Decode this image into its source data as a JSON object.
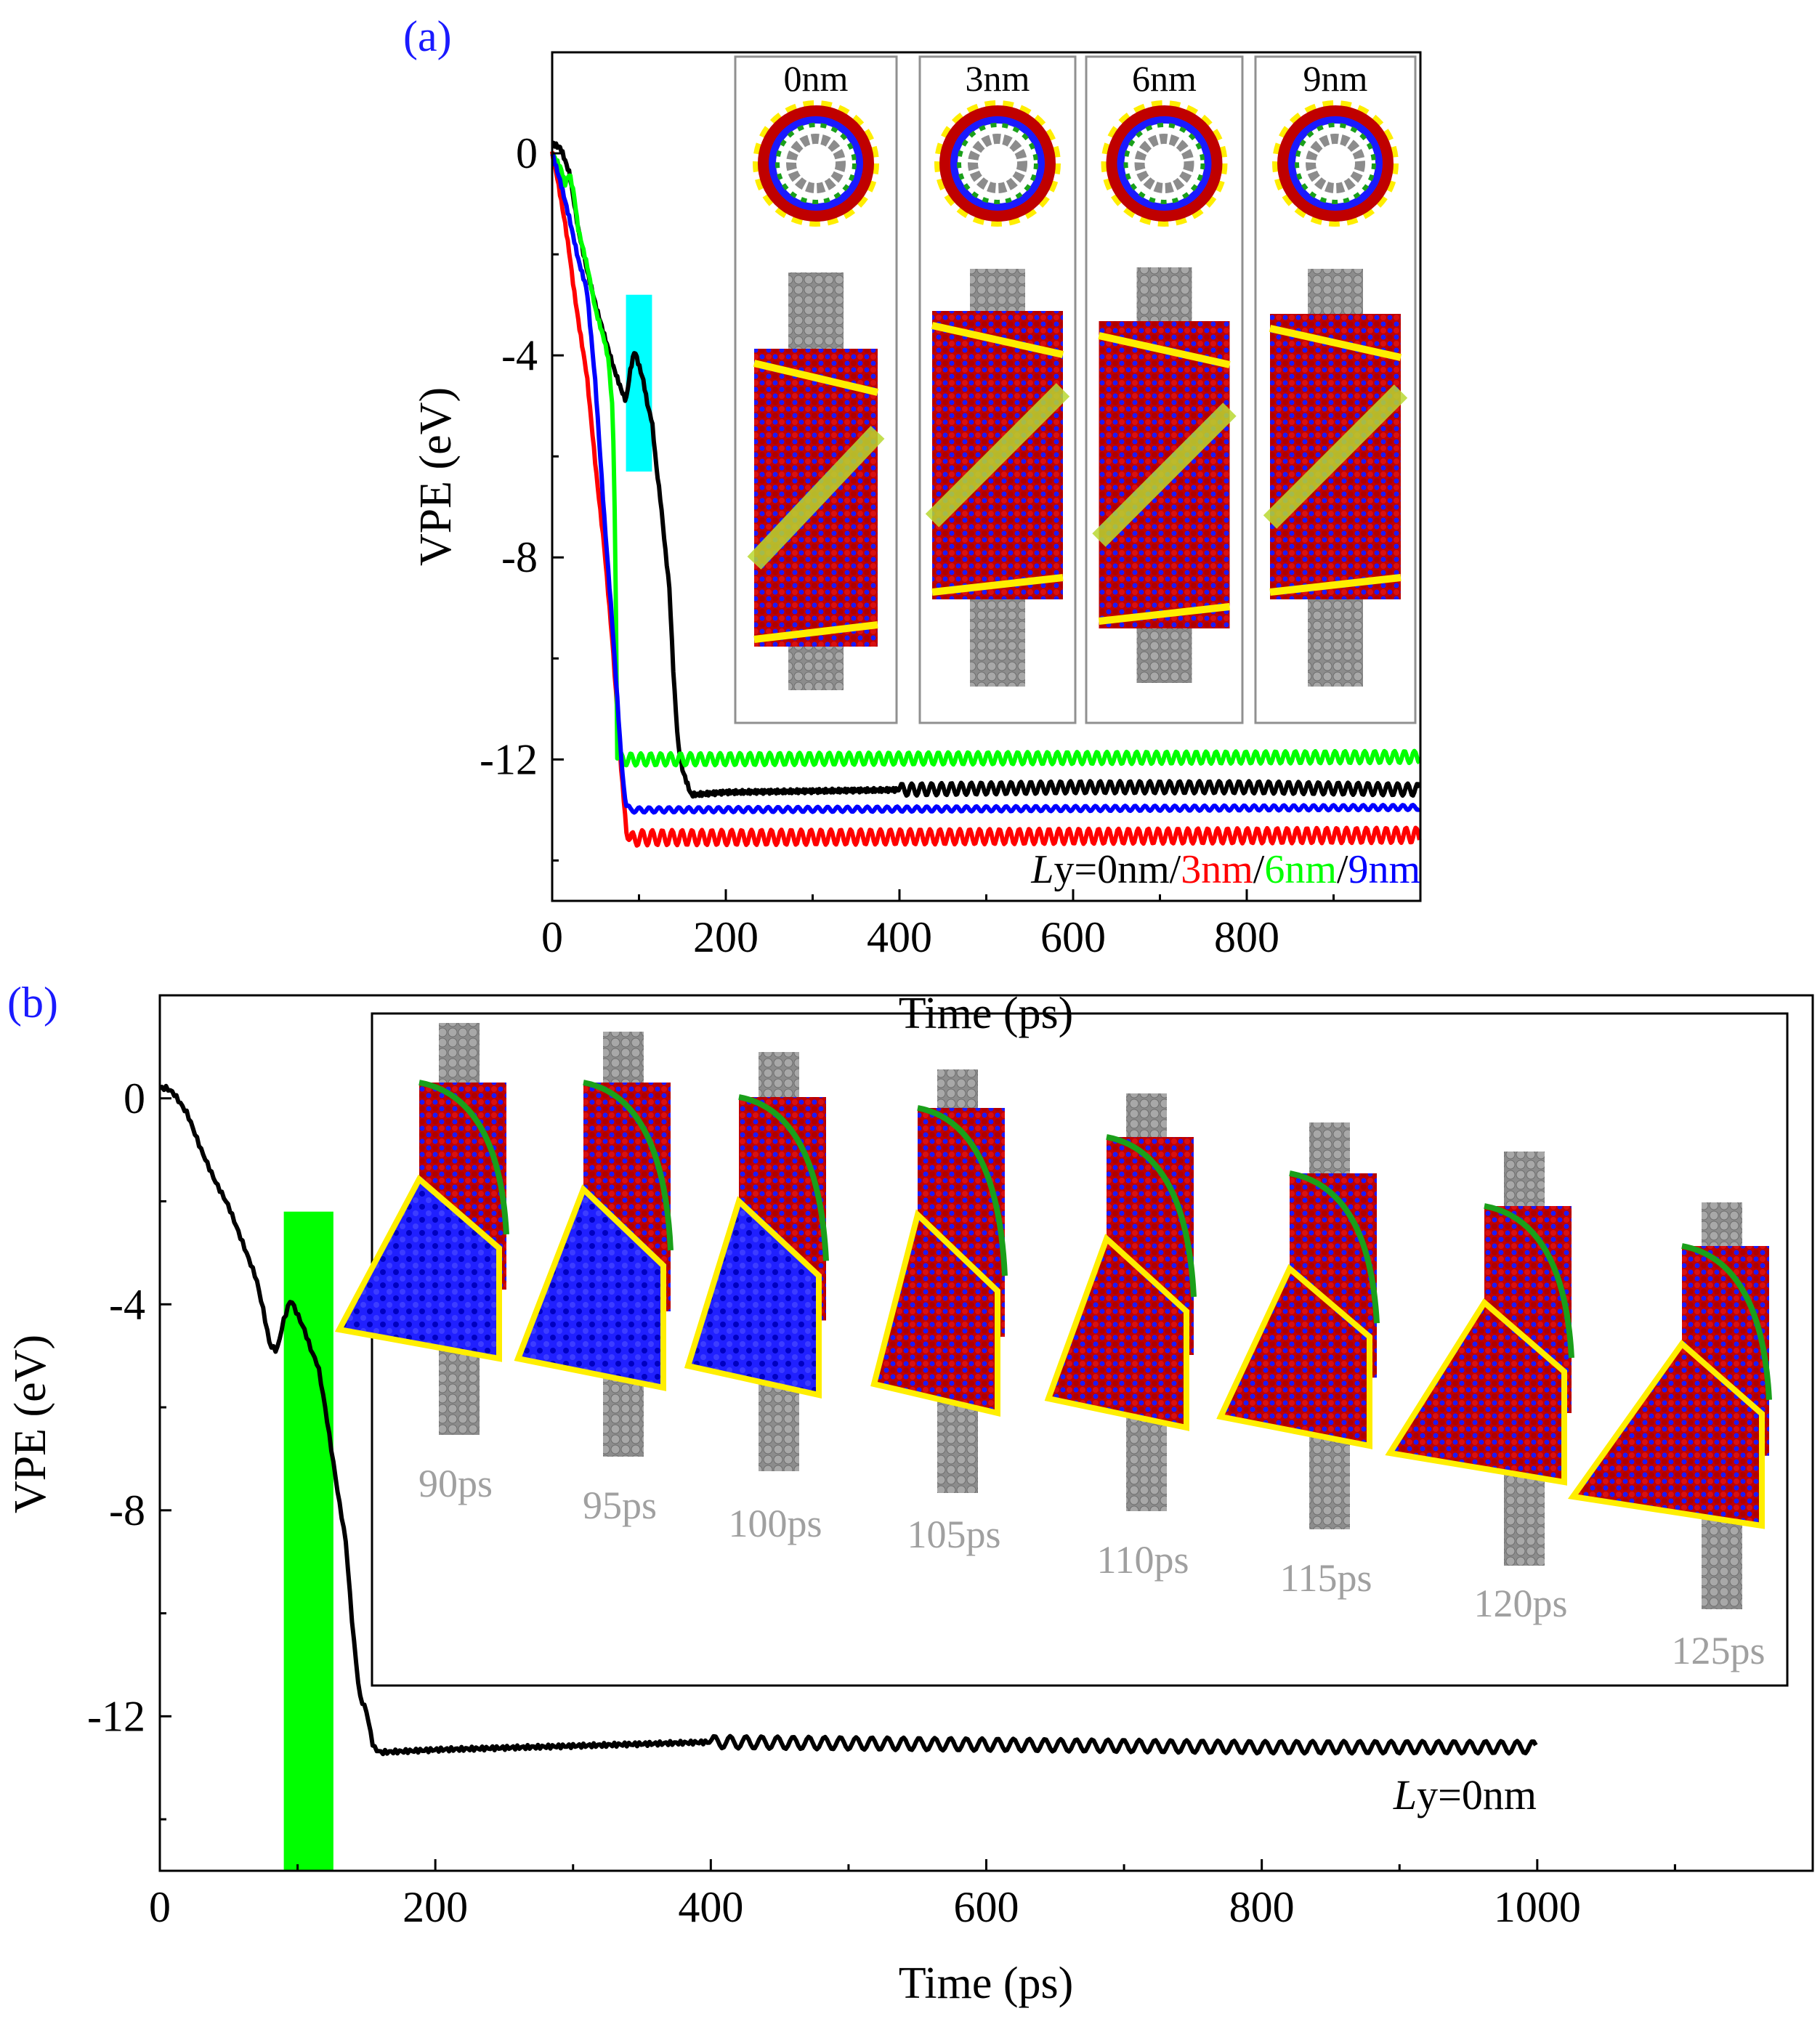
{
  "chart_data": [
    {
      "id": "a",
      "type": "line",
      "panel_label": "(a)",
      "title": "",
      "xlabel": "Time (ps)",
      "ylabel": "VPE (eV)",
      "xlim": [
        0,
        1000
      ],
      "ylim": [
        -14.8,
        2.0
      ],
      "x_ticks": [
        0,
        200,
        400,
        600,
        800
      ],
      "y_ticks": [
        0,
        -4,
        -8,
        -12
      ],
      "x_ticks_labels": [
        "0",
        "200",
        "400",
        "600",
        "800"
      ],
      "y_ticks_labels": [
        "0",
        "-4",
        "-8",
        "-12"
      ],
      "legend": {
        "prefix": "L",
        "prefix_rest": "y=",
        "items": [
          {
            "label": "0nm",
            "color": "#000000"
          },
          {
            "label": "3nm",
            "color": "#ff0000"
          },
          {
            "label": "6nm",
            "color": "#00ff00"
          },
          {
            "label": "9nm",
            "color": "#0000ff"
          }
        ],
        "separator": "/",
        "position": "bottom-right"
      },
      "highlight": {
        "x_start": 85,
        "x_end": 115,
        "y_top": -2.8,
        "y_bottom": -6.3,
        "color": "#00ffff"
      },
      "series": [
        {
          "name": "Ly=0nm",
          "color": "#000000",
          "x": [
            0,
            10,
            20,
            30,
            40,
            50,
            60,
            70,
            80,
            85,
            90,
            95,
            100,
            105,
            110,
            115,
            120,
            125,
            130,
            135,
            140,
            145,
            150,
            160,
            200,
            400,
            600,
            800,
            1000
          ],
          "y": [
            0.2,
            0.1,
            -0.4,
            -1.5,
            -2.3,
            -3.0,
            -3.6,
            -4.2,
            -4.7,
            -4.9,
            -4.3,
            -3.9,
            -4.2,
            -4.5,
            -5.0,
            -5.3,
            -6.2,
            -6.9,
            -7.8,
            -8.6,
            -10.4,
            -11.7,
            -12.2,
            -12.7,
            -12.65,
            -12.6,
            -12.55,
            -12.55,
            -12.6
          ],
          "osc_amp": 0.12
        },
        {
          "name": "Ly=3nm",
          "color": "#ff0000",
          "x": [
            0,
            5,
            10,
            15,
            20,
            25,
            30,
            40,
            50,
            60,
            70,
            80,
            85,
            90,
            100,
            1000
          ],
          "y": [
            0,
            -0.4,
            -0.9,
            -1.4,
            -2.0,
            -2.7,
            -3.3,
            -4.4,
            -6.2,
            -7.8,
            -9.8,
            -12.3,
            -13.3,
            -13.6,
            -13.55,
            -13.5
          ],
          "osc_amp": 0.15
        },
        {
          "name": "Ly=6nm",
          "color": "#00ff00",
          "x": [
            0,
            10,
            15,
            20,
            25,
            30,
            40,
            50,
            60,
            65,
            70,
            73,
            75,
            80,
            1000
          ],
          "y": [
            0,
            -0.3,
            -0.6,
            -0.4,
            -0.8,
            -1.5,
            -2.2,
            -3.1,
            -3.7,
            -4.1,
            -5.2,
            -8.0,
            -11.9,
            -12.0,
            -11.95
          ],
          "osc_amp": 0.12
        },
        {
          "name": "Ly=9nm",
          "color": "#0000ff",
          "x": [
            0,
            5,
            10,
            20,
            30,
            40,
            50,
            60,
            70,
            80,
            85,
            90,
            1000
          ],
          "y": [
            0,
            -0.3,
            -0.6,
            -1.3,
            -2.1,
            -2.7,
            -4.6,
            -7.2,
            -9.5,
            -12.1,
            -12.9,
            -13.0,
            -12.95
          ],
          "osc_amp": 0.05
        }
      ],
      "inset_labels": [
        "0nm",
        "3nm",
        "6nm",
        "9nm"
      ]
    },
    {
      "id": "b",
      "type": "line",
      "panel_label": "(b)",
      "title": "",
      "xlabel": "Time (ps)",
      "ylabel": "VPE (eV)",
      "xlim": [
        0,
        1200
      ],
      "ylim": [
        -15.0,
        2.0
      ],
      "x_ticks": [
        0,
        200,
        400,
        600,
        800,
        1000
      ],
      "y_ticks": [
        0,
        -4,
        -8,
        -12
      ],
      "x_ticks_labels": [
        "0",
        "200",
        "400",
        "600",
        "800",
        "1000"
      ],
      "y_ticks_labels": [
        "0",
        "-4",
        "-8",
        "-12"
      ],
      "legend": {
        "prefix": "L",
        "prefix_rest": "y=",
        "items": [
          {
            "label": "0nm",
            "color": "#000000"
          }
        ],
        "position": "bottom-right"
      },
      "highlight": {
        "x_start": 90,
        "x_end": 126,
        "y_top": -2.2,
        "y_bottom": -15.0,
        "color": "#00ff00"
      },
      "series": [
        {
          "name": "Ly=0nm",
          "color": "#000000",
          "x": [
            0,
            5,
            10,
            20,
            30,
            40,
            50,
            60,
            70,
            75,
            80,
            85,
            90,
            95,
            100,
            105,
            110,
            115,
            120,
            125,
            130,
            135,
            140,
            145,
            150,
            155,
            160,
            200,
            400,
            600,
            800,
            1000
          ],
          "y": [
            0.2,
            0.2,
            0.1,
            -0.3,
            -1.0,
            -1.6,
            -2.1,
            -2.8,
            -3.5,
            -4.1,
            -4.8,
            -4.9,
            -4.3,
            -3.9,
            -4.2,
            -4.5,
            -4.9,
            -5.2,
            -6.0,
            -6.9,
            -7.8,
            -8.6,
            -10.3,
            -11.6,
            -11.9,
            -12.6,
            -12.7,
            -12.65,
            -12.5,
            -12.55,
            -12.6,
            -12.6
          ],
          "osc_amp": 0.12
        }
      ],
      "inset_labels": [
        "90ps",
        "95ps",
        "100ps",
        "105ps",
        "110ps",
        "115ps",
        "120ps",
        "125ps"
      ]
    }
  ]
}
